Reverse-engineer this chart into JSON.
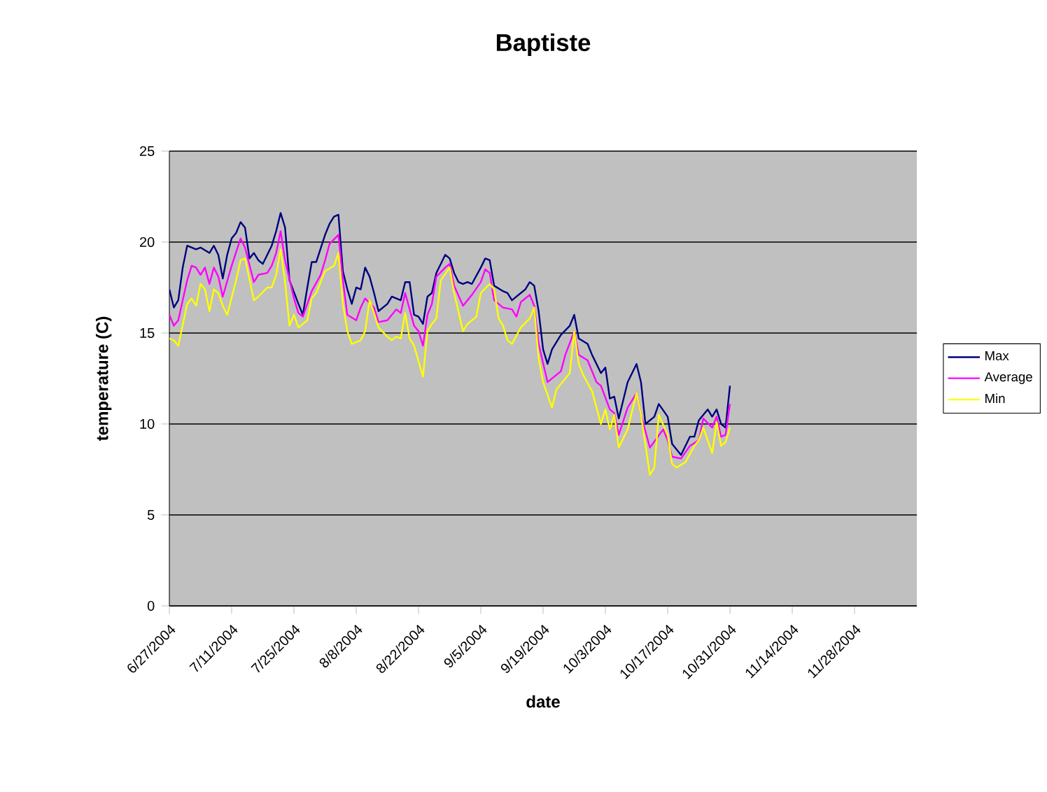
{
  "chart_data": {
    "type": "line",
    "title": "Baptiste",
    "xlabel": "date",
    "ylabel": "temperature (C)",
    "xlim": [
      "2004-06-27",
      "2004-12-12"
    ],
    "ylim": [
      0,
      25
    ],
    "xticks": [
      {
        "value": "2004-06-27",
        "label": "6/27/2004"
      },
      {
        "value": "2004-07-11",
        "label": "7/11/2004"
      },
      {
        "value": "2004-07-25",
        "label": "7/25/2004"
      },
      {
        "value": "2004-08-08",
        "label": "8/8/2004"
      },
      {
        "value": "2004-08-22",
        "label": "8/22/2004"
      },
      {
        "value": "2004-09-05",
        "label": "9/5/2004"
      },
      {
        "value": "2004-09-19",
        "label": "9/19/2004"
      },
      {
        "value": "2004-10-03",
        "label": "10/3/2004"
      },
      {
        "value": "2004-10-17",
        "label": "10/17/2004"
      },
      {
        "value": "2004-10-31",
        "label": "10/31/2004"
      },
      {
        "value": "2004-11-14",
        "label": "11/14/2004"
      },
      {
        "value": "2004-11-28",
        "label": "11/28/2004"
      }
    ],
    "yticks": [
      0,
      5,
      10,
      15,
      20,
      25
    ],
    "grid": "y",
    "legend": "right",
    "series": [
      {
        "name": "Max",
        "color": "#000080",
        "x": [
          "2004-06-27",
          "2004-06-28",
          "2004-06-29",
          "2004-06-30",
          "2004-07-01",
          "2004-07-03",
          "2004-07-04",
          "2004-07-06",
          "2004-07-07",
          "2004-07-08",
          "2004-07-09",
          "2004-07-10",
          "2004-07-11",
          "2004-07-12",
          "2004-07-13",
          "2004-07-14",
          "2004-07-15",
          "2004-07-16",
          "2004-07-17",
          "2004-07-18",
          "2004-07-20",
          "2004-07-21",
          "2004-07-22",
          "2004-07-23",
          "2004-07-24",
          "2004-07-26",
          "2004-07-27",
          "2004-07-28",
          "2004-07-29",
          "2004-07-30",
          "2004-08-01",
          "2004-08-02",
          "2004-08-03",
          "2004-08-04",
          "2004-08-05",
          "2004-08-06",
          "2004-08-07",
          "2004-08-08",
          "2004-08-09",
          "2004-08-10",
          "2004-08-11",
          "2004-08-12",
          "2004-08-13",
          "2004-08-15",
          "2004-08-16",
          "2004-08-18",
          "2004-08-19",
          "2004-08-20",
          "2004-08-21",
          "2004-08-22",
          "2004-08-23",
          "2004-08-24",
          "2004-08-25",
          "2004-08-26",
          "2004-08-28",
          "2004-08-29",
          "2004-08-30",
          "2004-08-31",
          "2004-09-01",
          "2004-09-02",
          "2004-09-03",
          "2004-09-05",
          "2004-09-06",
          "2004-09-07",
          "2004-09-08",
          "2004-09-10",
          "2004-09-11",
          "2004-09-12",
          "2004-09-14",
          "2004-09-15",
          "2004-09-16",
          "2004-09-17",
          "2004-09-18",
          "2004-09-19",
          "2004-09-20",
          "2004-09-21",
          "2004-09-23",
          "2004-09-25",
          "2004-09-26",
          "2004-09-27",
          "2004-09-29",
          "2004-09-30",
          "2004-10-02",
          "2004-10-03",
          "2004-10-04",
          "2004-10-05",
          "2004-10-06",
          "2004-10-08",
          "2004-10-10",
          "2004-10-11",
          "2004-10-12",
          "2004-10-14",
          "2004-10-15",
          "2004-10-17",
          "2004-10-18",
          "2004-10-20",
          "2004-10-21",
          "2004-10-22",
          "2004-10-23",
          "2004-10-24",
          "2004-10-26",
          "2004-10-27",
          "2004-10-28",
          "2004-10-29",
          "2004-10-30",
          "2004-10-31"
        ],
        "values": [
          17.4,
          16.4,
          16.8,
          18.6,
          19.8,
          19.6,
          19.7,
          19.4,
          19.8,
          19.3,
          18.0,
          19.3,
          20.2,
          20.5,
          21.1,
          20.8,
          19.1,
          19.4,
          19.0,
          18.8,
          19.8,
          20.6,
          21.6,
          20.8,
          17.9,
          16.6,
          16.0,
          17.5,
          18.9,
          18.9,
          20.4,
          21.0,
          21.4,
          21.5,
          18.4,
          17.4,
          16.6,
          17.5,
          17.4,
          18.6,
          18.1,
          17.2,
          16.2,
          16.6,
          17.0,
          16.8,
          17.8,
          17.8,
          16.0,
          15.9,
          15.5,
          17.0,
          17.2,
          18.3,
          19.3,
          19.1,
          18.3,
          17.8,
          17.7,
          17.8,
          17.7,
          18.6,
          19.1,
          19.0,
          17.6,
          17.3,
          17.2,
          16.8,
          17.2,
          17.4,
          17.8,
          17.6,
          16.2,
          14.1,
          13.3,
          14.1,
          14.9,
          15.4,
          16.0,
          14.7,
          14.4,
          13.8,
          12.8,
          13.1,
          11.4,
          11.5,
          10.3,
          12.3,
          13.3,
          12.3,
          10.0,
          10.4,
          11.1,
          10.4,
          8.9,
          8.3,
          8.8,
          9.3,
          9.3,
          10.2,
          10.8,
          10.4,
          10.8,
          10.0,
          9.8,
          12.1
        ]
      },
      {
        "name": "Average",
        "color": "#ff00ff",
        "x": [
          "2004-06-27",
          "2004-06-28",
          "2004-06-29",
          "2004-07-01",
          "2004-07-02",
          "2004-07-03",
          "2004-07-04",
          "2004-07-05",
          "2004-07-06",
          "2004-07-07",
          "2004-07-08",
          "2004-07-09",
          "2004-07-11",
          "2004-07-13",
          "2004-07-14",
          "2004-07-16",
          "2004-07-17",
          "2004-07-19",
          "2004-07-20",
          "2004-07-21",
          "2004-07-22",
          "2004-07-23",
          "2004-07-25",
          "2004-07-26",
          "2004-07-27",
          "2004-07-29",
          "2004-07-31",
          "2004-08-01",
          "2004-08-02",
          "2004-08-04",
          "2004-08-05",
          "2004-08-06",
          "2004-08-08",
          "2004-08-09",
          "2004-08-10",
          "2004-08-12",
          "2004-08-13",
          "2004-08-15",
          "2004-08-17",
          "2004-08-18",
          "2004-08-19",
          "2004-08-21",
          "2004-08-22",
          "2004-08-23",
          "2004-08-24",
          "2004-08-25",
          "2004-08-26",
          "2004-08-28",
          "2004-08-29",
          "2004-08-30",
          "2004-09-01",
          "2004-09-03",
          "2004-09-05",
          "2004-09-06",
          "2004-09-07",
          "2004-09-08",
          "2004-09-10",
          "2004-09-12",
          "2004-09-13",
          "2004-09-14",
          "2004-09-16",
          "2004-09-17",
          "2004-09-18",
          "2004-09-20",
          "2004-09-23",
          "2004-09-24",
          "2004-09-26",
          "2004-09-27",
          "2004-09-29",
          "2004-10-01",
          "2004-10-02",
          "2004-10-04",
          "2004-10-05",
          "2004-10-06",
          "2004-10-08",
          "2004-10-10",
          "2004-10-11",
          "2004-10-13",
          "2004-10-16",
          "2004-10-17",
          "2004-10-18",
          "2004-10-20",
          "2004-10-22",
          "2004-10-24",
          "2004-10-25",
          "2004-10-27",
          "2004-10-28",
          "2004-10-29",
          "2004-10-30",
          "2004-10-31"
        ],
        "values": [
          16.0,
          15.4,
          15.7,
          17.9,
          18.7,
          18.6,
          18.2,
          18.6,
          17.7,
          18.6,
          18.1,
          17.0,
          18.7,
          20.2,
          19.7,
          17.8,
          18.2,
          18.3,
          18.7,
          19.4,
          20.6,
          19.0,
          16.9,
          16.1,
          15.9,
          17.3,
          18.2,
          19.0,
          19.9,
          20.4,
          17.9,
          16.0,
          15.7,
          16.4,
          16.9,
          16.4,
          15.6,
          15.7,
          16.3,
          16.1,
          17.2,
          15.4,
          15.1,
          14.3,
          16.0,
          16.6,
          18.1,
          18.6,
          18.8,
          17.6,
          16.5,
          17.1,
          17.8,
          18.5,
          18.3,
          16.8,
          16.4,
          16.3,
          15.9,
          16.7,
          17.1,
          16.5,
          14.4,
          12.3,
          12.9,
          13.8,
          15.1,
          13.8,
          13.5,
          12.3,
          12.1,
          10.8,
          10.6,
          9.4,
          10.9,
          11.7,
          10.5,
          8.7,
          9.7,
          9.1,
          8.2,
          8.1,
          8.8,
          9.1,
          10.3,
          9.8,
          10.4,
          9.3,
          9.4,
          11.1
        ]
      },
      {
        "name": "Min",
        "color": "#ffff00",
        "x": [
          "2004-06-27",
          "2004-06-28",
          "2004-06-29",
          "2004-07-01",
          "2004-07-02",
          "2004-07-03",
          "2004-07-04",
          "2004-07-05",
          "2004-07-06",
          "2004-07-07",
          "2004-07-08",
          "2004-07-09",
          "2004-07-10",
          "2004-07-12",
          "2004-07-13",
          "2004-07-14",
          "2004-07-16",
          "2004-07-17",
          "2004-07-19",
          "2004-07-20",
          "2004-07-21",
          "2004-07-22",
          "2004-07-23",
          "2004-07-24",
          "2004-07-25",
          "2004-07-26",
          "2004-07-28",
          "2004-07-29",
          "2004-07-30",
          "2004-08-01",
          "2004-08-03",
          "2004-08-04",
          "2004-08-05",
          "2004-08-06",
          "2004-08-07",
          "2004-08-09",
          "2004-08-10",
          "2004-08-11",
          "2004-08-12",
          "2004-08-13",
          "2004-08-15",
          "2004-08-16",
          "2004-08-17",
          "2004-08-18",
          "2004-08-19",
          "2004-08-20",
          "2004-08-21",
          "2004-08-23",
          "2004-08-24",
          "2004-08-25",
          "2004-08-26",
          "2004-08-27",
          "2004-08-29",
          "2004-08-30",
          "2004-09-01",
          "2004-09-02",
          "2004-09-04",
          "2004-09-05",
          "2004-09-07",
          "2004-09-08",
          "2004-09-09",
          "2004-09-10",
          "2004-09-11",
          "2004-09-12",
          "2004-09-14",
          "2004-09-16",
          "2004-09-17",
          "2004-09-18",
          "2004-09-19",
          "2004-09-21",
          "2004-09-22",
          "2004-09-25",
          "2004-09-26",
          "2004-09-27",
          "2004-09-28",
          "2004-09-30",
          "2004-10-02",
          "2004-10-03",
          "2004-10-04",
          "2004-10-05",
          "2004-10-06",
          "2004-10-08",
          "2004-10-10",
          "2004-10-11",
          "2004-10-13",
          "2004-10-14",
          "2004-10-15",
          "2004-10-17",
          "2004-10-18",
          "2004-10-19",
          "2004-10-21",
          "2004-10-23",
          "2004-10-24",
          "2004-10-25",
          "2004-10-27",
          "2004-10-28",
          "2004-10-29",
          "2004-10-30",
          "2004-10-31"
        ],
        "values": [
          14.7,
          14.6,
          14.3,
          16.6,
          16.9,
          16.5,
          17.7,
          17.4,
          16.2,
          17.4,
          17.2,
          16.5,
          16.0,
          17.9,
          19.0,
          19.1,
          16.8,
          17.0,
          17.5,
          17.5,
          18.2,
          19.6,
          17.8,
          15.4,
          16.0,
          15.3,
          15.7,
          16.9,
          17.2,
          18.4,
          18.7,
          19.4,
          16.6,
          15.1,
          14.4,
          14.6,
          15.1,
          16.8,
          16.1,
          15.3,
          14.8,
          14.6,
          14.8,
          14.7,
          16.1,
          14.7,
          14.3,
          12.6,
          15.1,
          15.5,
          15.8,
          17.9,
          18.6,
          17.2,
          15.1,
          15.5,
          15.9,
          17.2,
          17.7,
          17.4,
          15.8,
          15.4,
          14.6,
          14.4,
          15.3,
          15.8,
          16.4,
          13.6,
          12.3,
          10.9,
          11.9,
          12.8,
          15.1,
          13.3,
          12.7,
          11.8,
          10.0,
          10.8,
          9.7,
          10.5,
          8.7,
          9.7,
          11.7,
          10.5,
          7.2,
          7.6,
          10.5,
          9.4,
          7.8,
          7.6,
          7.9,
          8.8,
          9.1,
          9.8,
          8.4,
          10.1,
          8.8,
          9.0,
          9.8
        ]
      }
    ]
  }
}
